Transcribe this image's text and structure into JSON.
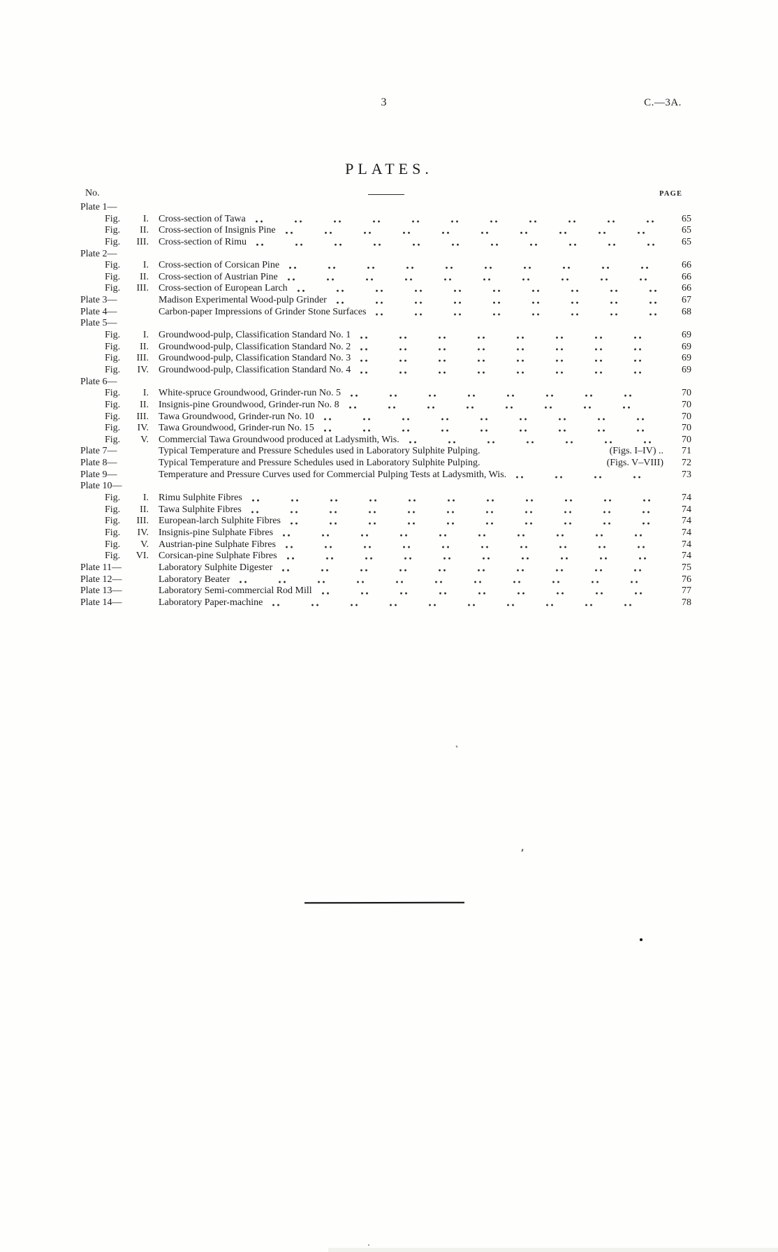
{
  "header": {
    "page_number": "3",
    "doc_ref": "C.—3A."
  },
  "table": {
    "title": "PLATES.",
    "no_label": "No.",
    "page_label": "PAGE",
    "entries": [
      {
        "type": "plate",
        "label": "Plate 1—",
        "title": "",
        "suffix": "",
        "page": ""
      },
      {
        "type": "fig",
        "label": "Fig.",
        "numeral": "I.",
        "title": "Cross-section of Tawa",
        "suffix": "",
        "page": "65"
      },
      {
        "type": "fig",
        "label": "Fig.",
        "numeral": "II.",
        "title": "Cross-section of Insignis Pine",
        "suffix": "",
        "page": "65"
      },
      {
        "type": "fig",
        "label": "Fig.",
        "numeral": "III.",
        "title": "Cross-section of Rimu",
        "suffix": "",
        "page": "65"
      },
      {
        "type": "plate",
        "label": "Plate 2—",
        "title": "",
        "suffix": "",
        "page": ""
      },
      {
        "type": "fig",
        "label": "Fig.",
        "numeral": "I.",
        "title": "Cross-section of Corsican Pine",
        "suffix": "",
        "page": "66"
      },
      {
        "type": "fig",
        "label": "Fig.",
        "numeral": "II.",
        "title": "Cross-section of Austrian Pine",
        "suffix": "",
        "page": "66"
      },
      {
        "type": "fig",
        "label": "Fig.",
        "numeral": "III.",
        "title": "Cross-section of European Larch",
        "suffix": "",
        "page": "66"
      },
      {
        "type": "plate",
        "label": "Plate 3—",
        "title": "Madison Experimental Wood-pulp Grinder",
        "suffix": "",
        "page": "67"
      },
      {
        "type": "plate",
        "label": "Plate 4—",
        "title": "Carbon-paper Impressions of Grinder Stone Surfaces",
        "suffix": "",
        "page": "68"
      },
      {
        "type": "plate",
        "label": "Plate 5—",
        "title": "",
        "suffix": "",
        "page": ""
      },
      {
        "type": "fig",
        "label": "Fig.",
        "numeral": "I.",
        "title": "Groundwood-pulp, Classification Standard No. 1",
        "suffix": "",
        "page": "69"
      },
      {
        "type": "fig",
        "label": "Fig.",
        "numeral": "II.",
        "title": "Groundwood-pulp, Classification Standard No. 2",
        "suffix": "",
        "page": "69"
      },
      {
        "type": "fig",
        "label": "Fig.",
        "numeral": "III.",
        "title": "Groundwood-pulp, Classification Standard No. 3",
        "suffix": "",
        "page": "69"
      },
      {
        "type": "fig",
        "label": "Fig.",
        "numeral": "IV.",
        "title": "Groundwood-pulp, Classification Standard No. 4",
        "suffix": "",
        "page": "69"
      },
      {
        "type": "plate",
        "label": "Plate 6—",
        "title": "",
        "suffix": "",
        "page": ""
      },
      {
        "type": "fig",
        "label": "Fig.",
        "numeral": "I.",
        "title": "White-spruce Groundwood, Grinder-run No. 5",
        "suffix": "",
        "page": "70"
      },
      {
        "type": "fig",
        "label": "Fig.",
        "numeral": "II.",
        "title": "Insignis-pine Groundwood, Grinder-run No. 8",
        "suffix": "",
        "page": "70"
      },
      {
        "type": "fig",
        "label": "Fig.",
        "numeral": "III.",
        "title": "Tawa Groundwood, Grinder-run No. 10",
        "suffix": "",
        "page": "70"
      },
      {
        "type": "fig",
        "label": "Fig.",
        "numeral": "IV.",
        "title": "Tawa Groundwood, Grinder-run No. 15",
        "suffix": "",
        "page": "70"
      },
      {
        "type": "fig",
        "label": "Fig.",
        "numeral": "V.",
        "title": "Commercial Tawa Groundwood produced at Ladysmith, Wis.",
        "suffix": "",
        "page": "70"
      },
      {
        "type": "plate",
        "label": "Plate 7—",
        "title": "Typical Temperature and Pressure Schedules used in Laboratory Sulphite Pulping.",
        "suffix": "(Figs. I–IV)  ..",
        "page": "71",
        "leader": false
      },
      {
        "type": "plate",
        "label": "Plate 8—",
        "title": "Typical Temperature and Pressure Schedules used in Laboratory Sulphite Pulping.",
        "suffix": "(Figs. V–VIII)",
        "page": "72",
        "leader": false
      },
      {
        "type": "plate",
        "label": "Plate 9—",
        "title": "Temperature and Pressure Curves used for Commercial Pulping Tests at Ladysmith, Wis.",
        "suffix": "",
        "page": "73"
      },
      {
        "type": "plate",
        "label": "Plate 10—",
        "title": "",
        "suffix": "",
        "page": ""
      },
      {
        "type": "fig",
        "label": "Fig.",
        "numeral": "I.",
        "title": "Rimu Sulphite Fibres",
        "suffix": "",
        "page": "74"
      },
      {
        "type": "fig",
        "label": "Fig.",
        "numeral": "II.",
        "title": "Tawa Sulphite Fibres",
        "suffix": "",
        "page": "74"
      },
      {
        "type": "fig",
        "label": "Fig.",
        "numeral": "III.",
        "title": "European-larch Sulphite Fibres",
        "suffix": "",
        "page": "74"
      },
      {
        "type": "fig",
        "label": "Fig.",
        "numeral": "IV.",
        "title": "Insignis-pine Sulphate Fibres",
        "suffix": "",
        "page": "74"
      },
      {
        "type": "fig",
        "label": "Fig.",
        "numeral": "V.",
        "title": "Austrian-pine Sulphate Fibres",
        "suffix": "",
        "page": "74"
      },
      {
        "type": "fig",
        "label": "Fig.",
        "numeral": "VI.",
        "title": "Corsican-pine Sulphate Fibres",
        "suffix": "",
        "page": "74"
      },
      {
        "type": "plate",
        "label": "Plate 11—",
        "title": "Laboratory Sulphite Digester",
        "suffix": "",
        "page": "75"
      },
      {
        "type": "plate",
        "label": "Plate 12—",
        "title": "Laboratory Beater",
        "suffix": "",
        "page": "76"
      },
      {
        "type": "plate",
        "label": "Plate 13—",
        "title": "Laboratory Semi-commercial Rod Mill",
        "suffix": "",
        "page": "77"
      },
      {
        "type": "plate",
        "label": "Plate 14—",
        "title": "Laboratory Paper-machine",
        "suffix": "",
        "page": "78"
      }
    ]
  }
}
